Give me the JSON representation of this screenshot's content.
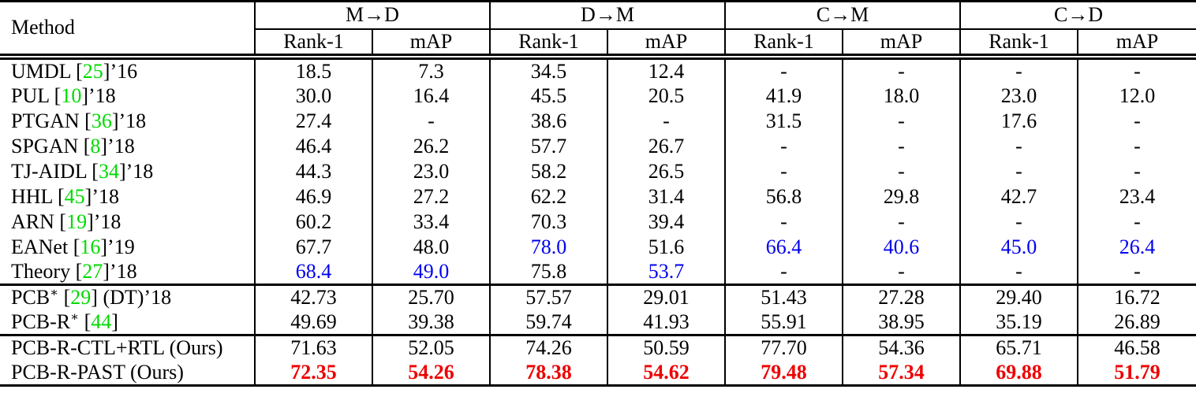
{
  "header": {
    "method": "Method",
    "groups": [
      {
        "label": "M→D",
        "sub": [
          "Rank-1",
          "mAP"
        ]
      },
      {
        "label": "D→M",
        "sub": [
          "Rank-1",
          "mAP"
        ]
      },
      {
        "label": "C→M",
        "sub": [
          "Rank-1",
          "mAP"
        ]
      },
      {
        "label": "C→D",
        "sub": [
          "Rank-1",
          "mAP"
        ]
      }
    ]
  },
  "colors": {
    "citation_green": "#00DB00",
    "highlight_blue": "#0000EE",
    "highlight_red_bold": "#EE0000"
  },
  "sections": [
    {
      "rows": [
        {
          "method": {
            "pre": "UMDL",
            "cite": "25",
            "post": "’16"
          },
          "cells": [
            {
              "v": "18.5"
            },
            {
              "v": "7.3"
            },
            {
              "v": "34.5"
            },
            {
              "v": "12.4"
            },
            {
              "v": "-"
            },
            {
              "v": "-"
            },
            {
              "v": "-"
            },
            {
              "v": "-"
            }
          ]
        },
        {
          "method": {
            "pre": "PUL",
            "cite": "10",
            "post": "’18"
          },
          "cells": [
            {
              "v": "30.0"
            },
            {
              "v": "16.4"
            },
            {
              "v": "45.5"
            },
            {
              "v": "20.5"
            },
            {
              "v": "41.9"
            },
            {
              "v": "18.0"
            },
            {
              "v": "23.0"
            },
            {
              "v": "12.0"
            }
          ]
        },
        {
          "method": {
            "pre": "PTGAN",
            "cite": "36",
            "post": "’18"
          },
          "cells": [
            {
              "v": "27.4"
            },
            {
              "v": "-"
            },
            {
              "v": "38.6"
            },
            {
              "v": "-"
            },
            {
              "v": "31.5"
            },
            {
              "v": "-"
            },
            {
              "v": "17.6"
            },
            {
              "v": "-"
            }
          ]
        },
        {
          "method": {
            "pre": "SPGAN",
            "cite": "8",
            "post": "’18"
          },
          "cells": [
            {
              "v": "46.4"
            },
            {
              "v": "26.2"
            },
            {
              "v": "57.7"
            },
            {
              "v": "26.7"
            },
            {
              "v": "-"
            },
            {
              "v": "-"
            },
            {
              "v": "-"
            },
            {
              "v": "-"
            }
          ]
        },
        {
          "method": {
            "pre": "TJ-AIDL",
            "cite": "34",
            "post": "’18"
          },
          "cells": [
            {
              "v": "44.3"
            },
            {
              "v": "23.0"
            },
            {
              "v": "58.2"
            },
            {
              "v": "26.5"
            },
            {
              "v": "-"
            },
            {
              "v": "-"
            },
            {
              "v": "-"
            },
            {
              "v": "-"
            }
          ]
        },
        {
          "method": {
            "pre": "HHL",
            "cite": "45",
            "post": "’18"
          },
          "cells": [
            {
              "v": "46.9"
            },
            {
              "v": "27.2"
            },
            {
              "v": "62.2"
            },
            {
              "v": "31.4"
            },
            {
              "v": "56.8"
            },
            {
              "v": "29.8"
            },
            {
              "v": "42.7"
            },
            {
              "v": "23.4"
            }
          ]
        },
        {
          "method": {
            "pre": "ARN",
            "cite": "19",
            "post": "’18"
          },
          "cells": [
            {
              "v": "60.2"
            },
            {
              "v": "33.4"
            },
            {
              "v": "70.3"
            },
            {
              "v": "39.4"
            },
            {
              "v": "-"
            },
            {
              "v": "-"
            },
            {
              "v": "-"
            },
            {
              "v": "-"
            }
          ]
        },
        {
          "method": {
            "pre": "EANet",
            "cite": "16",
            "post": "’19"
          },
          "cells": [
            {
              "v": "67.7"
            },
            {
              "v": "48.0"
            },
            {
              "v": "78.0",
              "style": "blue"
            },
            {
              "v": "51.6"
            },
            {
              "v": "66.4",
              "style": "blue"
            },
            {
              "v": "40.6",
              "style": "blue"
            },
            {
              "v": "45.0",
              "style": "blue"
            },
            {
              "v": "26.4",
              "style": "blue"
            }
          ]
        },
        {
          "method": {
            "pre": "Theory",
            "cite": "27",
            "post": "’18"
          },
          "cells": [
            {
              "v": "68.4",
              "style": "blue"
            },
            {
              "v": "49.0",
              "style": "blue"
            },
            {
              "v": "75.8"
            },
            {
              "v": "53.7",
              "style": "blue"
            },
            {
              "v": "-"
            },
            {
              "v": "-"
            },
            {
              "v": "-"
            },
            {
              "v": "-"
            }
          ]
        }
      ]
    },
    {
      "rows": [
        {
          "method": {
            "pre": "PCB",
            "sup": "∗",
            "cite": "29",
            "post": " (DT)’18"
          },
          "cells": [
            {
              "v": "42.73"
            },
            {
              "v": "25.70"
            },
            {
              "v": "57.57"
            },
            {
              "v": "29.01"
            },
            {
              "v": "51.43"
            },
            {
              "v": "27.28"
            },
            {
              "v": "29.40"
            },
            {
              "v": "16.72"
            }
          ]
        },
        {
          "method": {
            "pre": "PCB-R",
            "sup": "∗",
            "cite": "44",
            "post": ""
          },
          "cells": [
            {
              "v": "49.69"
            },
            {
              "v": "39.38"
            },
            {
              "v": "59.74"
            },
            {
              "v": "41.93"
            },
            {
              "v": "55.91"
            },
            {
              "v": "38.95"
            },
            {
              "v": "35.19"
            },
            {
              "v": "26.89"
            }
          ]
        }
      ]
    },
    {
      "rows": [
        {
          "method": {
            "pre": "PCB-R-CTL+RTL (Ours)"
          },
          "cells": [
            {
              "v": "71.63"
            },
            {
              "v": "52.05"
            },
            {
              "v": "74.26"
            },
            {
              "v": "50.59"
            },
            {
              "v": "77.70"
            },
            {
              "v": "54.36"
            },
            {
              "v": "65.71"
            },
            {
              "v": "46.58"
            }
          ]
        },
        {
          "method": {
            "pre": "PCB-R-PAST (Ours)"
          },
          "cells": [
            {
              "v": "72.35",
              "style": "red"
            },
            {
              "v": "54.26",
              "style": "red"
            },
            {
              "v": "78.38",
              "style": "red"
            },
            {
              "v": "54.62",
              "style": "red"
            },
            {
              "v": "79.48",
              "style": "red"
            },
            {
              "v": "57.34",
              "style": "red"
            },
            {
              "v": "69.88",
              "style": "red"
            },
            {
              "v": "51.79",
              "style": "red"
            }
          ]
        }
      ]
    }
  ]
}
